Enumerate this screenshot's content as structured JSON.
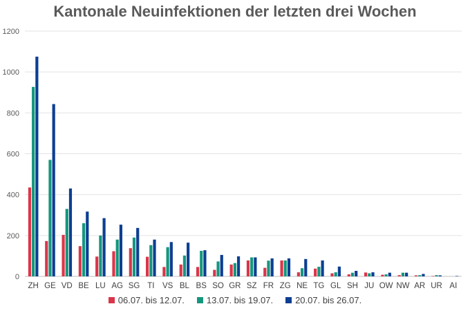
{
  "chart_data": {
    "type": "bar",
    "title": "Kantonale Neuinfektionen der letzten drei Wochen",
    "categories": [
      "ZH",
      "GE",
      "VD",
      "BE",
      "LU",
      "AG",
      "SG",
      "TI",
      "VS",
      "BL",
      "BS",
      "SO",
      "GR",
      "SZ",
      "FR",
      "ZG",
      "NE",
      "TG",
      "GL",
      "SH",
      "JU",
      "OW",
      "NW",
      "AR",
      "UR",
      "AI"
    ],
    "series": [
      {
        "name": "06.07. bis 12.07.",
        "color": "#d9364a",
        "values": [
          435,
          173,
          203,
          148,
          97,
          123,
          138,
          96,
          46,
          58,
          46,
          32,
          58,
          78,
          42,
          78,
          20,
          38,
          15,
          10,
          19,
          8,
          6,
          5,
          2,
          0
        ]
      },
      {
        "name": "13.07. bis 19.07.",
        "color": "#15967e",
        "values": [
          927,
          570,
          330,
          260,
          200,
          180,
          190,
          153,
          143,
          102,
          125,
          73,
          65,
          93,
          77,
          78,
          40,
          47,
          20,
          18,
          15,
          10,
          18,
          6,
          6,
          0
        ]
      },
      {
        "name": "20.07. bis 26.07.",
        "color": "#0d3f92",
        "values": [
          1075,
          843,
          430,
          317,
          285,
          253,
          237,
          180,
          168,
          165,
          128,
          105,
          98,
          93,
          88,
          88,
          85,
          78,
          48,
          27,
          20,
          18,
          18,
          12,
          5,
          2
        ]
      }
    ],
    "ylim": [
      0,
      1200
    ],
    "yticks": [
      0,
      200,
      400,
      600,
      800,
      1000,
      1200
    ],
    "grid": true,
    "legend_position": "bottom",
    "xlabel": "",
    "ylabel": ""
  }
}
